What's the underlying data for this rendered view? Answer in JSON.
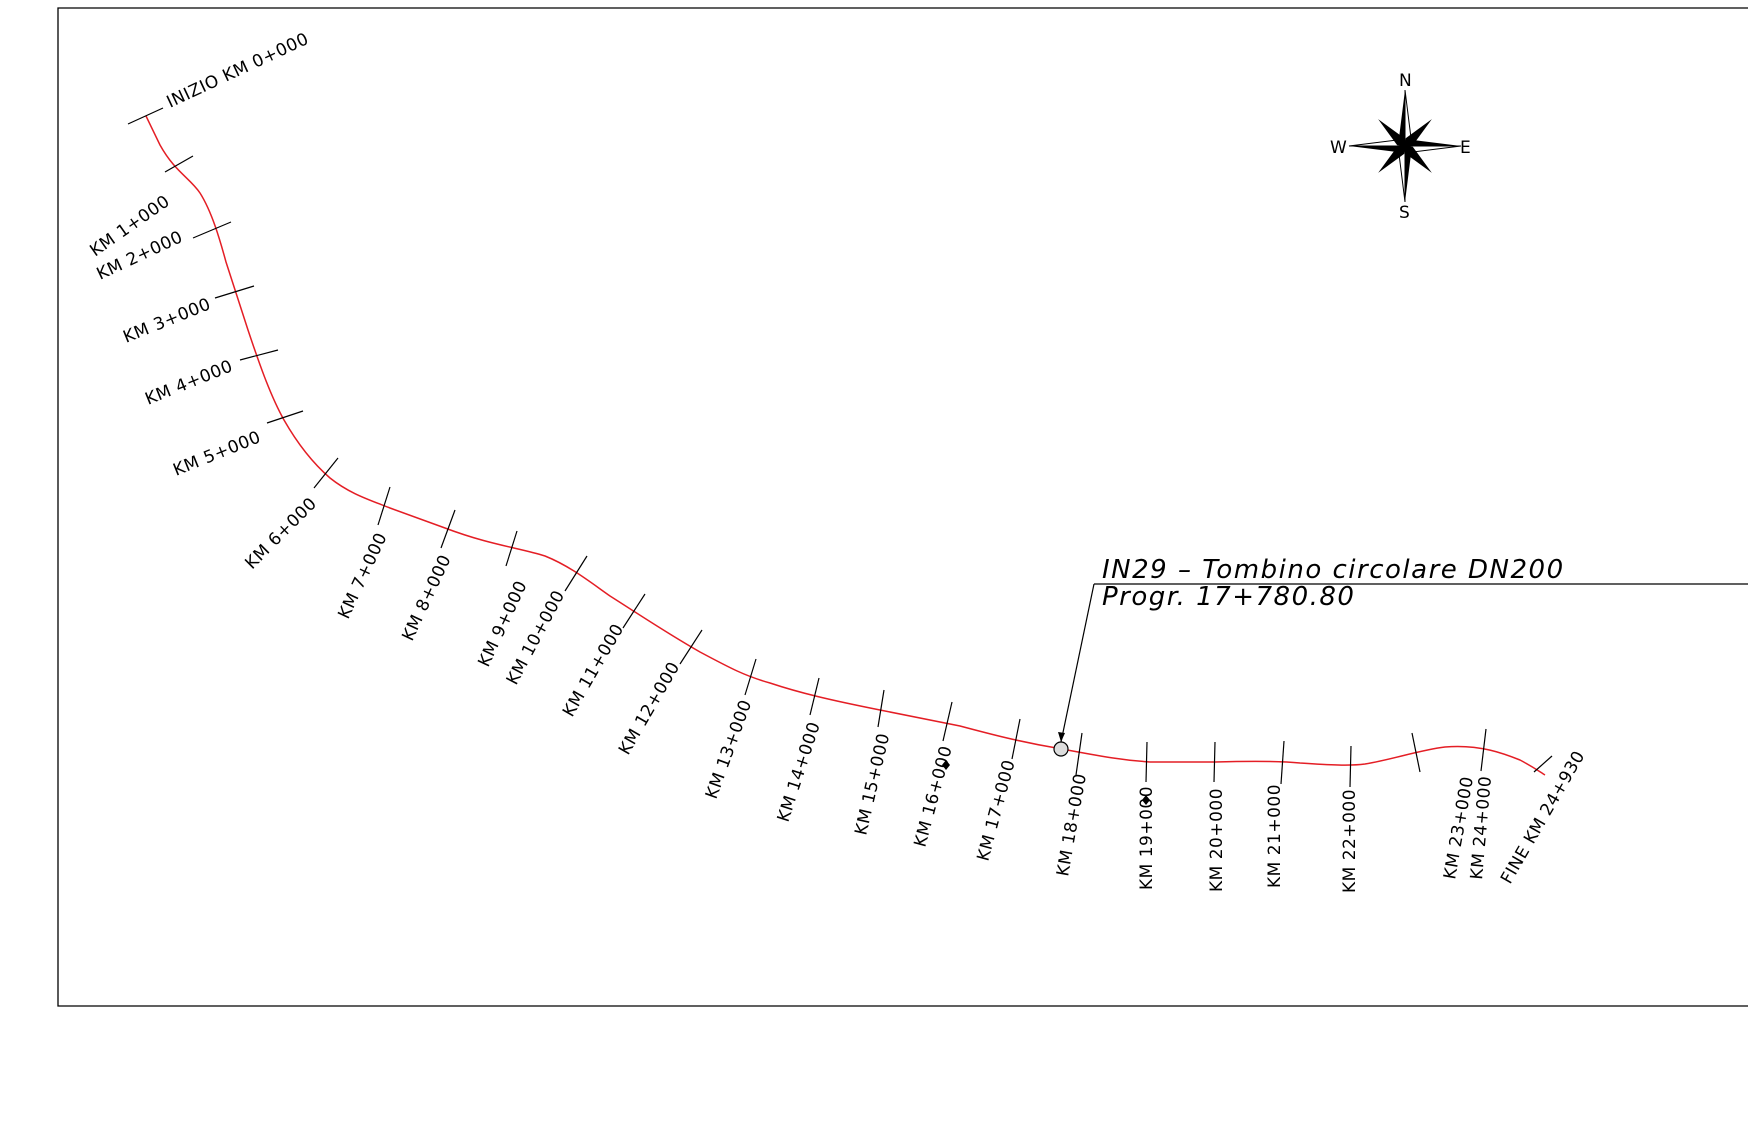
{
  "drawing": {
    "route_color": "#e41e25",
    "line_color": "#000000"
  },
  "start_label": "INIZIO KM 0+000",
  "end_label": "FINE KM 24+930",
  "km_labels": [
    "KM 1+000",
    "KM 2+000",
    "KM 3+000",
    "KM 4+000",
    "KM 5+000",
    "KM 6+000",
    "KM 7+000",
    "KM 8+000",
    "KM 9+000",
    "KM 10+000",
    "KM 11+000",
    "KM 12+000",
    "KM 13+000",
    "KM 14+000",
    "KM 15+000",
    "KM 16+000",
    "KM 17+000",
    "KM 18+000",
    "KM 19+000",
    "KM 20+000",
    "KM 21+000",
    "KM 22+000",
    "KM 23+000",
    "KM 24+000"
  ],
  "annotation": {
    "line1": "IN29  –  Tombino circolare  DN200",
    "line2": "Progr.  17+780.80"
  },
  "compass": {
    "north": "N",
    "south": "S",
    "east": "E",
    "west": "W",
    "icon": "compass-rose-icon"
  }
}
